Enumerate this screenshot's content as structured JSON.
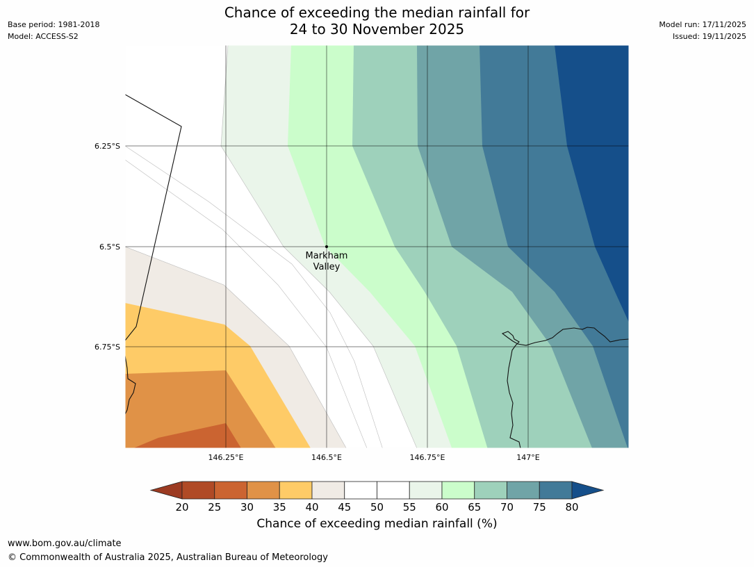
{
  "header": {
    "title_line1": "Chance of exceeding the median rainfall for",
    "title_line2": "24 to 30 November 2025",
    "base_period": "Base period: 1981-2018",
    "model": "Model: ACCESS-S2",
    "model_run": "Model run: 17/11/2025",
    "issued": "Issued: 19/11/2025"
  },
  "map": {
    "lat_labels": [
      "6.25°S",
      "6.5°S",
      "6.75°S"
    ],
    "lon_labels": [
      "146.25°E",
      "146.5°E",
      "146.75°E",
      "147°E"
    ],
    "place_label_line1": "Markham",
    "place_label_line2": "Valley"
  },
  "colorbar": {
    "ticks": [
      "20",
      "25",
      "30",
      "35",
      "40",
      "45",
      "50",
      "55",
      "60",
      "65",
      "70",
      "75",
      "80"
    ],
    "colors": [
      "#9c3b22",
      "#b04a26",
      "#cb6431",
      "#e09247",
      "#fecb67",
      "#f0ebe5",
      "#ffffff",
      "#ffffff",
      "#eaf5ea",
      "#cbfdcb",
      "#9ed1bb",
      "#70a4a7",
      "#427a98",
      "#154f8a"
    ],
    "label": "Chance of exceeding median rainfall (%)"
  },
  "footer": {
    "url": "www.bom.gov.au/climate",
    "copyright": "© Commonwealth of Australia 2025, Australian Bureau of Meteorology"
  }
}
